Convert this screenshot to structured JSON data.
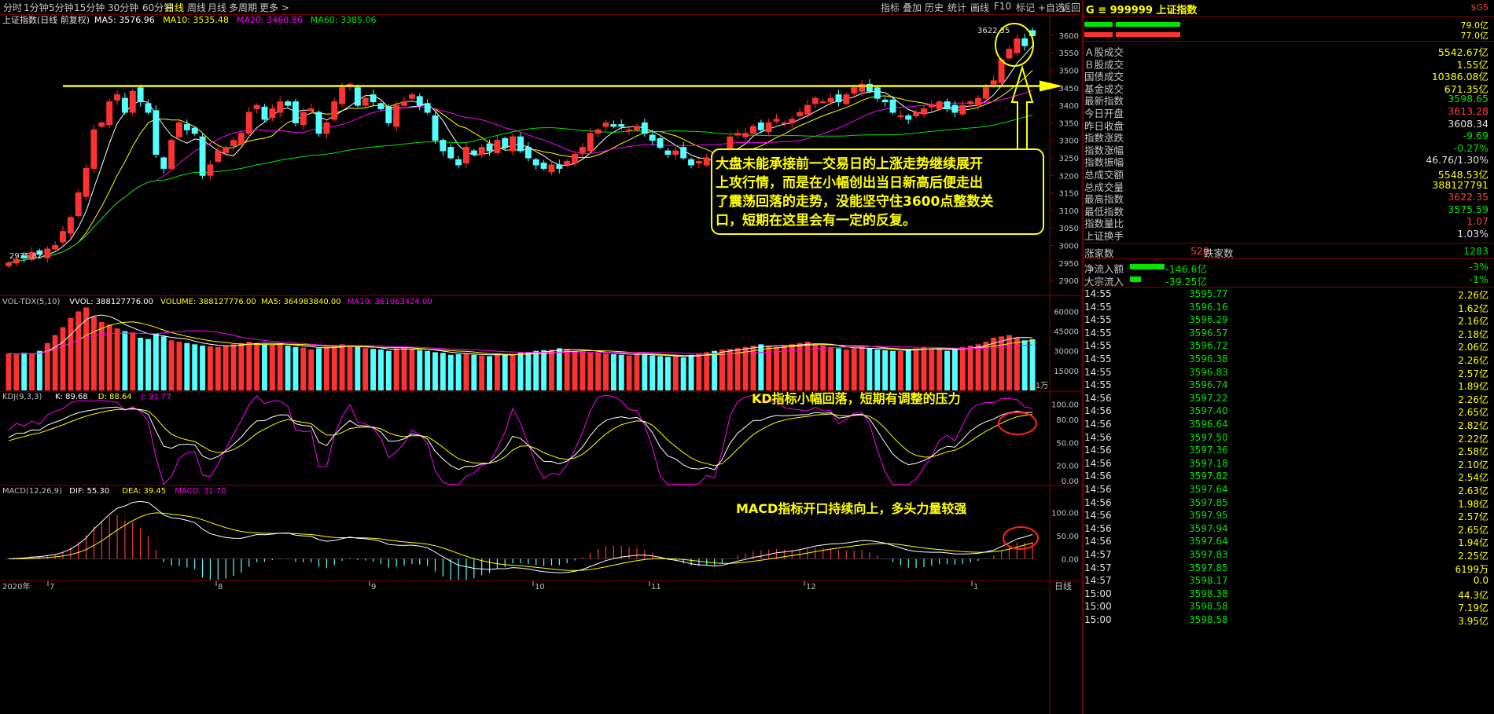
{
  "toolbar": {
    "tabs": [
      "分时",
      "1分钟",
      "5分钟",
      "15分钟",
      "30分钟",
      "60分钟",
      "日线",
      "周线",
      "月线",
      "多周期",
      "更多 >"
    ],
    "active_tab": "日线",
    "right_tabs": [
      "指标",
      "叠加",
      "历史",
      "统计",
      "画线",
      "F10",
      "标记",
      "+自选",
      "返回"
    ]
  },
  "main_panel": {
    "title": "上证指数(日线 前复权)",
    "ma_legend": [
      {
        "text": "MA5: 3576.96",
        "color": "#ffffff"
      },
      {
        "text": "MA10: 3535.48",
        "color": "#ffff00"
      },
      {
        "text": "MA20: 3460.86",
        "color": "#ff00ff"
      },
      {
        "text": "MA60: 3385.06",
        "color": "#00e600"
      }
    ],
    "high_label": "3622.35",
    "low_label": "2935.82",
    "annotation": "大盘未能承接前一交易日的上涨走势继续展开上攻行情，而是在小幅创出当日新高后便走出了震荡回落的走势，没能坚守住3600点整数关口，短期在这里会有一定的反复。",
    "annotation_lines": [
      "大盘未能承接前一交易日的上涨走势继续展开",
      "上攻行情，而是在小幅创出当日新高后便走出",
      "了震荡回落的走势，没能坚守住3600点整数关",
      "口，短期在这里会有一定的反复。"
    ]
  },
  "vol_panel": {
    "legend": [
      {
        "text": "VOL-TDX(5,10)",
        "color": "#c0c0c0"
      },
      {
        "text": "VVOL: 388127776.00",
        "color": "#ffffff"
      },
      {
        "text": "VOLUME: 388127776.00",
        "color": "#ffff00"
      },
      {
        "text": "MA5: 364983840.00",
        "color": "#ffff00"
      },
      {
        "text": "MA10: 361063424.00",
        "color": "#ff00ff"
      }
    ],
    "unit": "X1万"
  },
  "kdj_panel": {
    "legend": [
      {
        "text": "KDJ(9,3,3)",
        "color": "#c0c0c0"
      },
      {
        "text": "K: 89.68",
        "color": "#ffffff"
      },
      {
        "text": "D: 88.64",
        "color": "#ffff00"
      },
      {
        "text": "J: 91.77",
        "color": "#ff00ff"
      }
    ],
    "annotation": "KD指标小幅回落，短期有调整的压力"
  },
  "macd_panel": {
    "legend": [
      {
        "text": "MACD(12,26,9)",
        "color": "#c0c0c0"
      },
      {
        "text": "DIF: 55.30",
        "color": "#ffffff"
      },
      {
        "text": "DEA: 39.45",
        "color": "#ffff00"
      },
      {
        "text": "MACD: 31.70",
        "color": "#ff00ff"
      }
    ],
    "annotation": "MACD指标开口持续向上，多头力量较强"
  },
  "x_axis": {
    "year_label": "2020年",
    "months": [
      "7",
      "8",
      "9",
      "10",
      "11",
      "12",
      "1"
    ],
    "period_label": "日线"
  },
  "chart_data": [
    {
      "type": "candlestick",
      "y_ticks": [
        2900,
        2950,
        3000,
        3050,
        3100,
        3150,
        3200,
        3250,
        3300,
        3350,
        3400,
        3450,
        3500,
        3550,
        3600
      ],
      "ylim": [
        2860,
        3640
      ],
      "resistance_level": 3455,
      "closes": [
        2950,
        2960,
        2965,
        2980,
        2975,
        2990,
        3000,
        3040,
        3080,
        3150,
        3220,
        3330,
        3350,
        3410,
        3430,
        3380,
        3440,
        3410,
        3380,
        3260,
        3220,
        3300,
        3350,
        3330,
        3320,
        3200,
        3230,
        3270,
        3280,
        3300,
        3320,
        3380,
        3400,
        3360,
        3390,
        3410,
        3400,
        3350,
        3380,
        3390,
        3320,
        3350,
        3410,
        3450,
        3460,
        3400,
        3420,
        3410,
        3390,
        3350,
        3400,
        3410,
        3430,
        3400,
        3380,
        3300,
        3270,
        3250,
        3230,
        3280,
        3260,
        3280,
        3270,
        3300,
        3280,
        3310,
        3270,
        3250,
        3230,
        3220,
        3230,
        3220,
        3240,
        3260,
        3280,
        3320,
        3330,
        3350,
        3340,
        3340,
        3330,
        3340,
        3320,
        3300,
        3280,
        3260,
        3270,
        3250,
        3230,
        3240,
        3250,
        3230,
        3270,
        3310,
        3320,
        3320,
        3340,
        3330,
        3350,
        3360,
        3350,
        3360,
        3380,
        3400,
        3420,
        3410,
        3420,
        3410,
        3430,
        3450,
        3460,
        3440,
        3420,
        3410,
        3380,
        3370,
        3360,
        3380,
        3390,
        3400,
        3410,
        3390,
        3380,
        3400,
        3410,
        3420,
        3450,
        3470,
        3530,
        3560,
        3590,
        3570,
        3598.65
      ],
      "ma_series": [
        {
          "name": "MA5",
          "color": "#ffffff"
        },
        {
          "name": "MA10",
          "color": "#ffff00"
        },
        {
          "name": "MA20",
          "color": "#ff00ff"
        },
        {
          "name": "MA60",
          "color": "#00e600"
        }
      ]
    },
    {
      "type": "bar",
      "name": "VOL",
      "y_ticks": [
        15000,
        30000,
        45000,
        60000
      ],
      "ylim": [
        0,
        68000
      ],
      "values": [
        28000,
        27000,
        28500,
        27500,
        30000,
        36000,
        42000,
        48000,
        55000,
        60000,
        63000,
        56000,
        52000,
        50000,
        47000,
        45000,
        44000,
        40000,
        39000,
        43000,
        41000,
        38000,
        37000,
        36000,
        35000,
        34000,
        33500,
        33000,
        34000,
        35000,
        36000,
        37000,
        36000,
        35000,
        34500,
        35500,
        34000,
        33000,
        32500,
        31000,
        32000,
        33000,
        34000,
        35000,
        34000,
        33000,
        32000,
        31500,
        31000,
        30000,
        32000,
        33000,
        31000,
        30500,
        30000,
        29000,
        28500,
        27000,
        27500,
        28000,
        27000,
        26500,
        26000,
        28000,
        27000,
        27500,
        28500,
        29000,
        30000,
        30500,
        31000,
        32000,
        31500,
        30000,
        29500,
        29000,
        28500,
        28000,
        27500,
        27000,
        26500,
        28000,
        27000,
        26500,
        26000,
        25500,
        26000,
        25000,
        27000,
        28000,
        29000,
        30000,
        31000,
        31500,
        32000,
        33000,
        34000,
        35000,
        34000,
        33000,
        34000,
        35000,
        36000,
        37000,
        35000,
        34000,
        33000,
        32000,
        31000,
        32000,
        33000,
        32000,
        31000,
        30500,
        30000,
        30000,
        31000,
        32000,
        33000,
        32000,
        31000,
        30000,
        32000,
        33000,
        34000,
        35000,
        37000,
        40000,
        41000,
        42000,
        40000,
        38000,
        38812
      ]
    },
    {
      "type": "line",
      "name": "KDJ",
      "y_ticks": [
        0,
        20,
        50,
        80,
        100
      ],
      "ylim": [
        -5,
        112
      ],
      "K_last": 89.68,
      "D_last": 88.64,
      "J_last": 91.77
    },
    {
      "type": "bar",
      "name": "MACD",
      "y_ticks": [
        0,
        50,
        100
      ],
      "ylim": [
        -45,
        150
      ],
      "DIF_last": 55.3,
      "DEA_last": 39.45,
      "MACD_last": 31.7
    }
  ],
  "side_panel": {
    "code_line": "G ≡ 999999 上证指数",
    "sub": "$G5",
    "bars": [
      {
        "val": "79.0亿"
      },
      {
        "val": "77.0亿"
      }
    ],
    "stats": [
      {
        "label": "Ａ股成交",
        "value": "5542.67亿",
        "color": "#ffff00"
      },
      {
        "label": "Ｂ股成交",
        "value": "1.55亿",
        "color": "#ffff00"
      },
      {
        "label": "国债成交",
        "value": "10386.08亿",
        "color": "#ffff00"
      },
      {
        "label": "基金成交",
        "value": "671.35亿",
        "color": "#ffff00"
      },
      {
        "label": "最新指数",
        "value": "3598.65",
        "color": "#00e600"
      },
      {
        "label": "今日开盘",
        "value": "3613.28",
        "color": "#ff4040"
      },
      {
        "label": "昨日收盘",
        "value": "3608.34",
        "color": "#e0e0e0"
      },
      {
        "label": "指数涨跌",
        "value": "-9.69",
        "color": "#00e600"
      },
      {
        "label": "指数涨幅",
        "value": "-0.27%",
        "color": "#00e600"
      },
      {
        "label": "指数振幅",
        "value": "46.76/1.30%",
        "color": "#e0e0e0"
      },
      {
        "label": "总成交额",
        "value": "5548.53亿",
        "color": "#ffff00"
      },
      {
        "label": "总成交量",
        "value": "388127791",
        "color": "#ffff00"
      },
      {
        "label": "最高指数",
        "value": "3622.35",
        "color": "#ff4040"
      },
      {
        "label": "最低指数",
        "value": "3575.59",
        "color": "#00e600"
      },
      {
        "label": "指数量比",
        "value": "1.07",
        "color": "#ff4040"
      },
      {
        "label": "上证换手",
        "value": "1.03%",
        "color": "#e0e0e0"
      }
    ],
    "updown": {
      "up_label": "涨家数",
      "up_value": "520",
      "down_label": "跌家数",
      "down_value": "1283"
    },
    "flows": [
      {
        "label": "净流入额",
        "value": "-146.6亿",
        "pct": "-3%"
      },
      {
        "label": "大宗流入",
        "value": "-39.25亿",
        "pct": "-1%"
      }
    ],
    "ticks": [
      {
        "t": "14:55",
        "p": "3595.77",
        "v": "2.26亿"
      },
      {
        "t": "14:55",
        "p": "3596.16",
        "v": "1.62亿"
      },
      {
        "t": "14:55",
        "p": "3596.29",
        "v": "2.16亿"
      },
      {
        "t": "14:55",
        "p": "3596.57",
        "v": "2.18亿"
      },
      {
        "t": "14:55",
        "p": "3596.72",
        "v": "2.06亿"
      },
      {
        "t": "14:55",
        "p": "3596.38",
        "v": "2.26亿"
      },
      {
        "t": "14:55",
        "p": "3596.83",
        "v": "2.57亿"
      },
      {
        "t": "14:55",
        "p": "3596.74",
        "v": "1.89亿"
      },
      {
        "t": "14:56",
        "p": "3597.22",
        "v": "2.26亿"
      },
      {
        "t": "14:56",
        "p": "3597.40",
        "v": "2.65亿"
      },
      {
        "t": "14:56",
        "p": "3596.64",
        "v": "2.82亿"
      },
      {
        "t": "14:56",
        "p": "3597.50",
        "v": "2.22亿"
      },
      {
        "t": "14:56",
        "p": "3597.36",
        "v": "2.58亿"
      },
      {
        "t": "14:56",
        "p": "3597.18",
        "v": "2.10亿"
      },
      {
        "t": "14:56",
        "p": "3597.82",
        "v": "2.54亿"
      },
      {
        "t": "14:56",
        "p": "3597.64",
        "v": "2.63亿"
      },
      {
        "t": "14:56",
        "p": "3597.85",
        "v": "1.98亿"
      },
      {
        "t": "14:56",
        "p": "3597.95",
        "v": "2.57亿"
      },
      {
        "t": "14:56",
        "p": "3597.94",
        "v": "2.65亿"
      },
      {
        "t": "14:56",
        "p": "3597.64",
        "v": "1.94亿"
      },
      {
        "t": "14:57",
        "p": "3597.83",
        "v": "2.25亿"
      },
      {
        "t": "14:57",
        "p": "3597.85",
        "v": "6199万"
      },
      {
        "t": "14:57",
        "p": "3598.17",
        "v": "0.0"
      },
      {
        "t": "15:00",
        "p": "3598.38",
        "v": "44.3亿"
      },
      {
        "t": "15:00",
        "p": "3598.58",
        "v": "7.19亿"
      },
      {
        "t": "15:00",
        "p": "3598.58",
        "v": "3.95亿"
      }
    ]
  }
}
